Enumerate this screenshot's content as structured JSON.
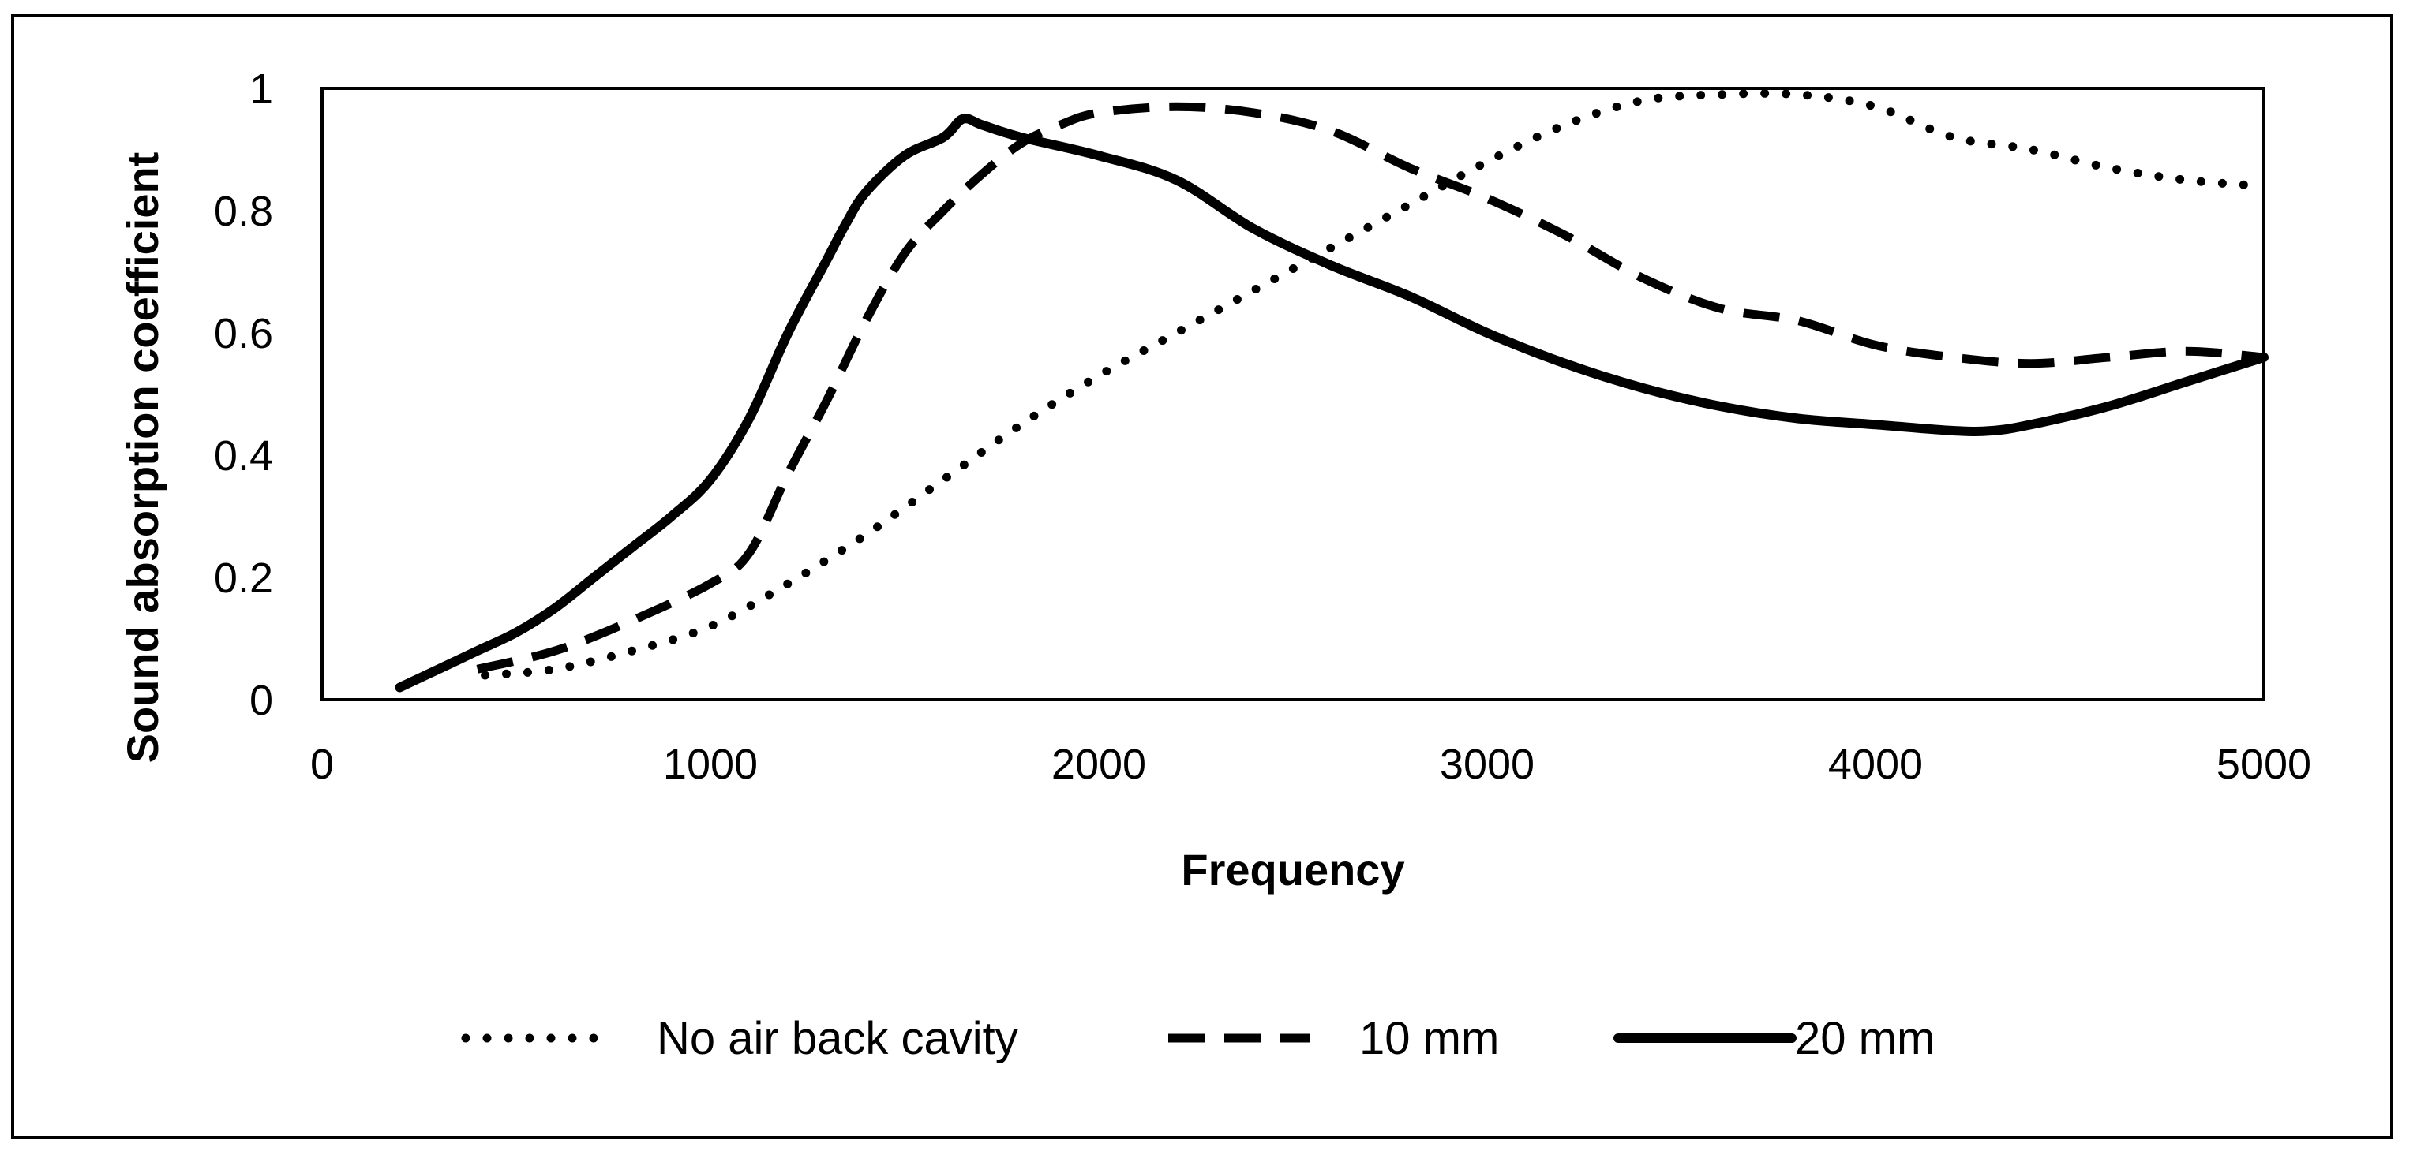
{
  "chart_data": {
    "type": "line",
    "title": "",
    "xlabel": "Frequency",
    "ylabel": "Sound absorption coefficient",
    "xlim": [
      0,
      5000
    ],
    "ylim": [
      0,
      1
    ],
    "x_ticks": [
      "0",
      "1000",
      "2000",
      "3000",
      "4000",
      "5000"
    ],
    "y_ticks": [
      "0",
      "0.2",
      "0.4",
      "0.6",
      "0.8",
      "1"
    ],
    "grid": false,
    "legend_position": "bottom",
    "series": [
      {
        "name": "No air back cavity",
        "style": "dotted",
        "x": [
          420,
          600,
          800,
          1000,
          1200,
          1400,
          1600,
          1800,
          2000,
          2200,
          2400,
          2600,
          2800,
          3000,
          3200,
          3400,
          3600,
          3800,
          4000,
          4200,
          4400,
          4600,
          4800,
          5000
        ],
        "y": [
          0.04,
          0.05,
          0.08,
          0.12,
          0.19,
          0.27,
          0.36,
          0.45,
          0.53,
          0.6,
          0.67,
          0.74,
          0.81,
          0.88,
          0.94,
          0.98,
          0.99,
          0.99,
          0.97,
          0.92,
          0.9,
          0.87,
          0.85,
          0.84
        ]
      },
      {
        "name": "10 mm",
        "style": "dashed",
        "x": [
          400,
          600,
          800,
          1000,
          1100,
          1200,
          1300,
          1400,
          1500,
          1600,
          1700,
          1800,
          1900,
          2000,
          2200,
          2400,
          2600,
          2800,
          3000,
          3200,
          3400,
          3600,
          3800,
          4000,
          4200,
          4400,
          4600,
          4800,
          5000
        ],
        "y": [
          0.05,
          0.08,
          0.13,
          0.19,
          0.24,
          0.37,
          0.49,
          0.62,
          0.73,
          0.8,
          0.86,
          0.91,
          0.94,
          0.96,
          0.97,
          0.96,
          0.93,
          0.87,
          0.82,
          0.76,
          0.69,
          0.64,
          0.62,
          0.58,
          0.56,
          0.55,
          0.56,
          0.57,
          0.56
        ]
      },
      {
        "name": "20 mm",
        "style": "solid",
        "x": [
          200,
          300,
          400,
          500,
          600,
          700,
          800,
          900,
          1000,
          1100,
          1200,
          1300,
          1350,
          1400,
          1500,
          1600,
          1650,
          1700,
          1800,
          2000,
          2200,
          2400,
          2600,
          2800,
          3000,
          3200,
          3400,
          3600,
          3800,
          4000,
          4200,
          4300,
          4400,
          4600,
          4800,
          5000
        ],
        "y": [
          0.02,
          0.05,
          0.08,
          0.11,
          0.15,
          0.2,
          0.25,
          0.3,
          0.36,
          0.46,
          0.6,
          0.72,
          0.78,
          0.83,
          0.89,
          0.92,
          0.95,
          0.94,
          0.92,
          0.89,
          0.85,
          0.77,
          0.71,
          0.66,
          0.6,
          0.55,
          0.51,
          0.48,
          0.46,
          0.45,
          0.44,
          0.44,
          0.45,
          0.48,
          0.52,
          0.56
        ]
      }
    ]
  }
}
